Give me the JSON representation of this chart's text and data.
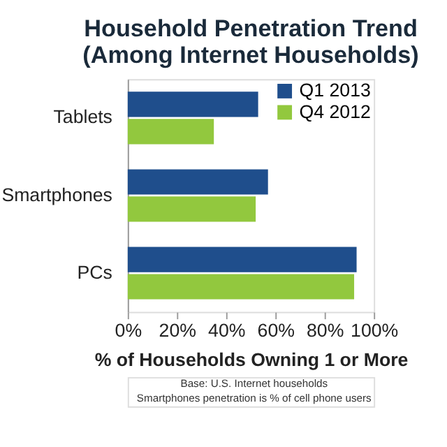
{
  "chart_data": {
    "type": "bar",
    "orientation": "horizontal",
    "title": "Household Penetration Trend\n(Among Internet Households)",
    "xlabel": "% of Households Owning 1 or More",
    "categories": [
      "Tablets",
      "Smartphones",
      "PCs"
    ],
    "series": [
      {
        "name": "Q1 2013",
        "color": "#1f4e8c",
        "values": [
          53,
          57,
          93
        ]
      },
      {
        "name": "Q4 2012",
        "color": "#92c83e",
        "values": [
          35,
          52,
          92
        ]
      }
    ],
    "xlim": [
      0,
      100
    ],
    "xticks": [
      {
        "value": 0,
        "label": "0%"
      },
      {
        "value": 20,
        "label": "20%"
      },
      {
        "value": 40,
        "label": "40%"
      },
      {
        "value": 60,
        "label": "60%"
      },
      {
        "value": 80,
        "label": "80%"
      },
      {
        "value": 100,
        "label": "100%"
      }
    ],
    "grid": false,
    "legend": "top right",
    "annotations": [
      "Base: U.S. Internet households",
      "Smartphones penetration is % of cell phone users"
    ]
  }
}
